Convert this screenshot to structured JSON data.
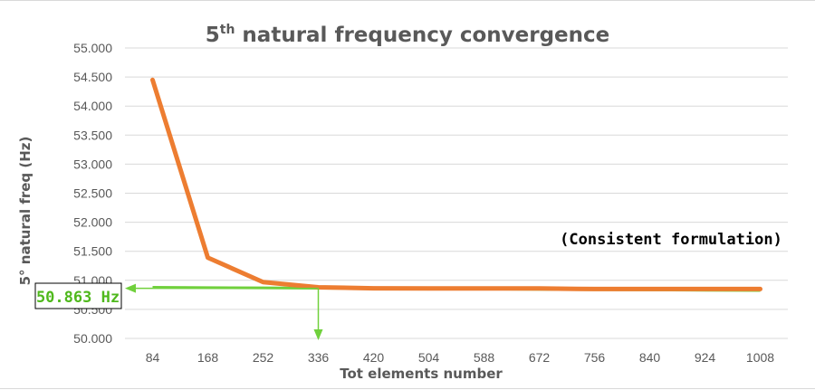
{
  "chart_data": {
    "type": "line",
    "title": "5",
    "title_superscript": "th",
    "title_rest": " natural frequency convergence",
    "xlabel": "Tot elements number",
    "ylabel": "5° natural freq (Hz)",
    "categories": [
      "84",
      "168",
      "252",
      "336",
      "420",
      "504",
      "588",
      "672",
      "756",
      "840",
      "924",
      "1008"
    ],
    "series": [
      {
        "values": [
          54.45,
          51.39,
          50.97,
          50.88,
          50.863,
          50.86,
          50.86,
          50.86,
          50.85,
          50.85,
          50.85,
          50.85
        ],
        "color": "#ed7d31"
      }
    ],
    "reference_line": {
      "values": [
        50.88,
        50.875,
        50.87,
        50.865,
        50.86,
        50.855,
        50.85,
        50.845,
        50.84,
        50.835,
        50.83,
        50.825
      ],
      "color": "#70d03c"
    },
    "ylim": [
      50.0,
      55.0
    ],
    "y_ticks": [
      "50.000",
      "50.500",
      "51.000",
      "51.500",
      "52.000",
      "52.500",
      "53.000",
      "53.500",
      "54.000",
      "54.500",
      "55.000"
    ],
    "grid": true,
    "annotations": {
      "note": "(Consistent formulation)",
      "callout_label": "50.863 Hz",
      "callout_value": 50.863,
      "callout_category": "336",
      "callout_color": "#70d03c"
    }
  }
}
